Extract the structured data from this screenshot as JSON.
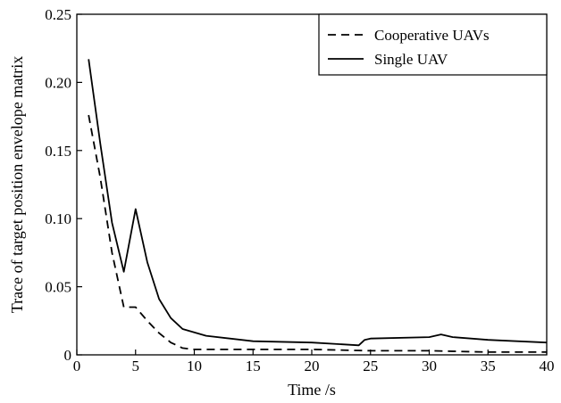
{
  "chart_data": {
    "type": "line",
    "xlabel": "Time /s",
    "ylabel": "Trace of target position envelope matrix",
    "xlim": [
      0,
      40
    ],
    "ylim": [
      0,
      0.25
    ],
    "x_ticks": [
      "0",
      "5",
      "10",
      "15",
      "20",
      "25",
      "30",
      "35",
      "40"
    ],
    "y_ticks": [
      "0",
      "0.05",
      "0.10",
      "0.15",
      "0.20",
      "0.25"
    ],
    "grid": false,
    "legend_position": "top-right",
    "series": [
      {
        "name": "Cooperative UAVs",
        "style": "dashed",
        "color": "#000000",
        "x": [
          1,
          2,
          3,
          4,
          5,
          6,
          7,
          8,
          9,
          10,
          15,
          20,
          25,
          30,
          35,
          40
        ],
        "y": [
          0.176,
          0.13,
          0.075,
          0.035,
          0.035,
          0.025,
          0.016,
          0.009,
          0.005,
          0.004,
          0.004,
          0.004,
          0.003,
          0.003,
          0.002,
          0.002
        ]
      },
      {
        "name": "Single UAV",
        "style": "solid",
        "color": "#000000",
        "x": [
          1,
          2,
          3,
          4,
          5,
          6,
          7,
          8,
          9,
          11,
          15,
          20,
          24,
          24.5,
          25,
          30,
          31,
          32,
          35,
          40
        ],
        "y": [
          0.217,
          0.155,
          0.097,
          0.061,
          0.107,
          0.068,
          0.041,
          0.027,
          0.019,
          0.014,
          0.01,
          0.009,
          0.007,
          0.011,
          0.012,
          0.013,
          0.015,
          0.013,
          0.011,
          0.009
        ]
      }
    ]
  }
}
